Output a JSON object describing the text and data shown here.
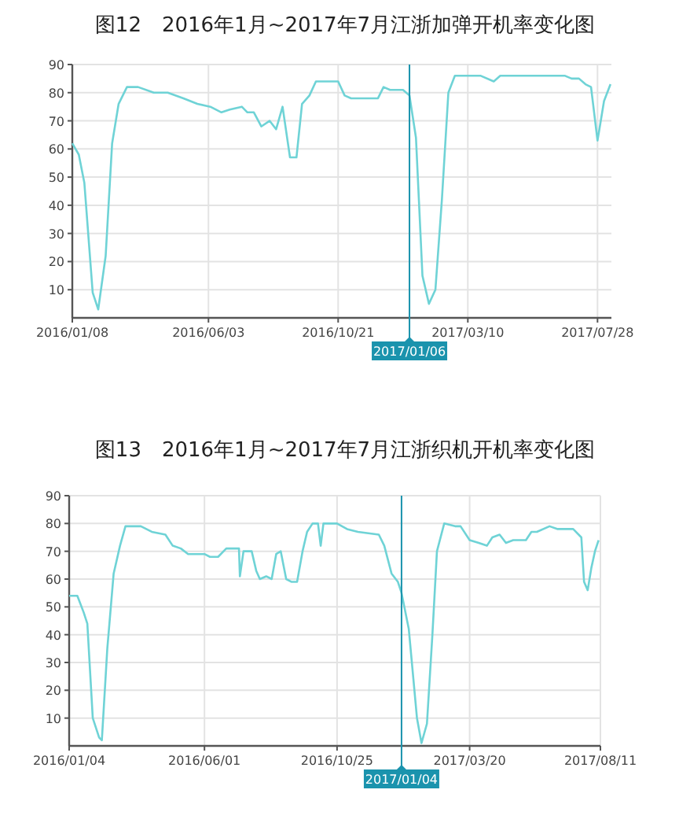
{
  "chart_data": [
    {
      "type": "line",
      "title": "图12　2016年1月~2017年7月江浙加弹开机率变化图",
      "xlim": [
        "2016-01-08",
        "2017-08-12"
      ],
      "xticks": [
        {
          "value": "2016-01-08",
          "label": "2016/01/08"
        },
        {
          "value": "2016-06-03",
          "label": "2016/06/03"
        },
        {
          "value": "2016-10-21",
          "label": "2016/10/21"
        },
        {
          "value": "2017-03-10",
          "label": "2017/03/10"
        },
        {
          "value": "2017-07-28",
          "label": "2017/07/28"
        }
      ],
      "ylim": [
        0,
        90
      ],
      "yticks": [
        10,
        20,
        30,
        40,
        50,
        60,
        70,
        80,
        90
      ],
      "grid": true,
      "marker": "none",
      "line_style": "solid",
      "ref_lines": [
        {
          "axis": "x",
          "value": "2017-01-06",
          "label": "2017/01/06",
          "color": "#1a93ad"
        }
      ],
      "series": [
        {
          "color": "#6fd3d6",
          "x": [
            "2016-01-08",
            "2016-01-15",
            "2016-01-21",
            "2016-01-30",
            "2016-02-05",
            "2016-02-13",
            "2016-02-20",
            "2016-02-27",
            "2016-03-07",
            "2016-03-19",
            "2016-04-05",
            "2016-04-20",
            "2016-05-07",
            "2016-05-22",
            "2016-06-05",
            "2016-06-17",
            "2016-06-26",
            "2016-07-09",
            "2016-07-15",
            "2016-07-22",
            "2016-07-30",
            "2016-08-08",
            "2016-08-15",
            "2016-08-22",
            "2016-08-30",
            "2016-09-06",
            "2016-09-12",
            "2016-09-20",
            "2016-09-27",
            "2016-10-09",
            "2016-10-21",
            "2016-10-28",
            "2016-11-04",
            "2016-11-24",
            "2016-12-03",
            "2016-12-09",
            "2016-12-16",
            "2016-12-30",
            "2017-01-06",
            "2017-01-13",
            "2017-01-20",
            "2017-01-27",
            "2017-02-03",
            "2017-02-10",
            "2017-02-17",
            "2017-02-24",
            "2017-03-10",
            "2017-03-24",
            "2017-04-07",
            "2017-04-14",
            "2017-05-11",
            "2017-06-23",
            "2017-06-30",
            "2017-07-08",
            "2017-07-15",
            "2017-07-21",
            "2017-07-28",
            "2017-08-04",
            "2017-08-11"
          ],
          "values": [
            62,
            58,
            48,
            9,
            3,
            22,
            62,
            76,
            82,
            82,
            80,
            80,
            78,
            76,
            75,
            73,
            74,
            75,
            73,
            73,
            68,
            70,
            67,
            75,
            57,
            57,
            76,
            79,
            84,
            84,
            84,
            79,
            78,
            78,
            78,
            82,
            81,
            81,
            79,
            64,
            15,
            5,
            10,
            42,
            80,
            86,
            86,
            86,
            84,
            86,
            86,
            86,
            85,
            85,
            83,
            82,
            63,
            77,
            83
          ]
        }
      ]
    },
    {
      "type": "line",
      "title": "图13　2016年1月~2017年7月江浙织机开机率变化图",
      "xlim": [
        "2016-01-04",
        "2017-08-11"
      ],
      "xticks": [
        {
          "value": "2016-01-04",
          "label": "2016/01/04"
        },
        {
          "value": "2016-06-01",
          "label": "2016/06/01"
        },
        {
          "value": "2016-10-25",
          "label": "2016/10/25"
        },
        {
          "value": "2017-03-20",
          "label": "2017/03/20"
        },
        {
          "value": "2017-08-11",
          "label": "2017/08/11"
        }
      ],
      "ylim": [
        0,
        90
      ],
      "yticks": [
        10,
        20,
        30,
        40,
        50,
        60,
        70,
        80,
        90
      ],
      "grid": true,
      "marker": "none",
      "line_style": "solid",
      "ref_lines": [
        {
          "axis": "x",
          "value": "2017-01-04",
          "label": "2017/01/04",
          "color": "#1a93ad"
        }
      ],
      "series": [
        {
          "color": "#6fd3d6",
          "x": [
            "2016-01-04",
            "2016-01-13",
            "2016-01-20",
            "2016-01-24",
            "2016-01-30",
            "2016-02-06",
            "2016-02-09",
            "2016-02-15",
            "2016-02-22",
            "2016-02-29",
            "2016-03-06",
            "2016-03-23",
            "2016-04-04",
            "2016-04-19",
            "2016-04-27",
            "2016-05-06",
            "2016-05-14",
            "2016-06-01",
            "2016-06-07",
            "2016-06-16",
            "2016-06-25",
            "2016-07-09",
            "2016-07-10",
            "2016-07-14",
            "2016-07-23",
            "2016-07-28",
            "2016-08-01",
            "2016-08-08",
            "2016-08-14",
            "2016-08-19",
            "2016-08-24",
            "2016-08-30",
            "2016-09-05",
            "2016-09-11",
            "2016-09-17",
            "2016-09-22",
            "2016-09-28",
            "2016-10-04",
            "2016-10-07",
            "2016-10-10",
            "2016-10-25",
            "2016-11-05",
            "2016-11-17",
            "2016-12-10",
            "2016-12-16",
            "2016-12-24",
            "2016-12-31",
            "2017-01-04",
            "2017-01-12",
            "2017-01-21",
            "2017-01-26",
            "2017-02-01",
            "2017-02-07",
            "2017-02-12",
            "2017-02-20",
            "2017-03-04",
            "2017-03-10",
            "2017-03-20",
            "2017-03-30",
            "2017-04-08",
            "2017-04-14",
            "2017-04-22",
            "2017-04-29",
            "2017-05-07",
            "2017-05-21",
            "2017-05-27",
            "2017-06-02",
            "2017-06-16",
            "2017-06-25",
            "2017-07-12",
            "2017-07-21",
            "2017-07-24",
            "2017-07-28",
            "2017-08-01",
            "2017-08-05",
            "2017-08-09"
          ],
          "values": [
            54,
            54,
            48,
            44,
            10,
            3,
            2,
            35,
            62,
            72,
            79,
            79,
            77,
            76,
            72,
            71,
            69,
            69,
            68,
            68,
            71,
            71,
            61,
            70,
            70,
            63,
            60,
            61,
            60,
            69,
            70,
            60,
            59,
            59,
            70,
            77,
            80,
            80,
            72,
            80,
            80,
            78,
            77,
            76,
            72,
            62,
            59,
            55,
            42,
            10,
            1,
            8,
            40,
            70,
            80,
            79,
            79,
            74,
            73,
            72,
            75,
            76,
            73,
            74,
            74,
            77,
            77,
            79,
            78,
            78,
            75,
            59,
            56,
            64,
            70,
            74
          ]
        }
      ]
    }
  ]
}
